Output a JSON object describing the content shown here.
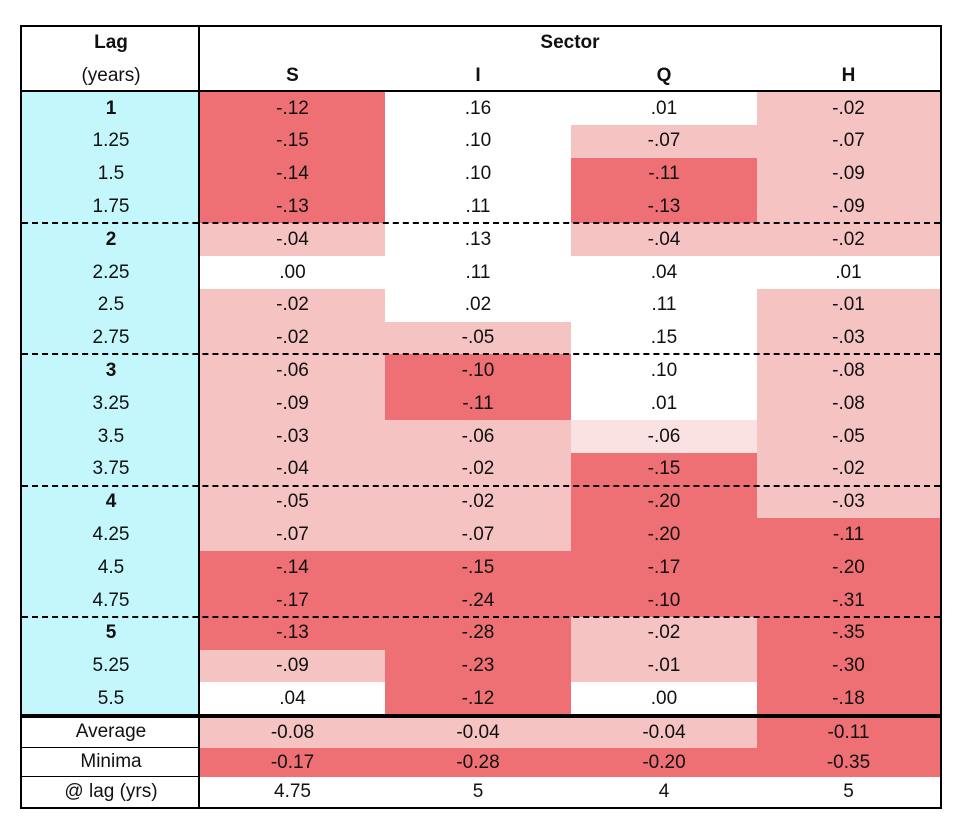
{
  "header": {
    "lag": "Lag",
    "lag_unit": "(years)",
    "sector": "Sector",
    "columns": [
      "S",
      "I",
      "Q",
      "H"
    ]
  },
  "groups": [
    {
      "rows": [
        {
          "lag": "1",
          "cells": [
            "-.12",
            ".16",
            ".01",
            "-.02"
          ],
          "colors": [
            "#ee7074",
            "#ffffff",
            "#ffffff",
            "#f6c3c3"
          ]
        },
        {
          "lag": "1.25",
          "cells": [
            "-.15",
            ".10",
            "-.07",
            "-.07"
          ],
          "colors": [
            "#ee7074",
            "#ffffff",
            "#f6c3c3",
            "#f6c3c3"
          ]
        },
        {
          "lag": "1.5",
          "cells": [
            "-.14",
            ".10",
            "-.11",
            "-.09"
          ],
          "colors": [
            "#ee7074",
            "#ffffff",
            "#ee7074",
            "#f6c3c3"
          ]
        },
        {
          "lag": "1.75",
          "cells": [
            "-.13",
            ".11",
            "-.13",
            "-.09"
          ],
          "colors": [
            "#ee7074",
            "#ffffff",
            "#ee7074",
            "#f6c3c3"
          ]
        }
      ]
    },
    {
      "rows": [
        {
          "lag": "2",
          "cells": [
            "-.04",
            ".13",
            "-.04",
            "-.02"
          ],
          "colors": [
            "#f6c3c3",
            "#ffffff",
            "#f6c3c3",
            "#f6c3c3"
          ]
        },
        {
          "lag": "2.25",
          "cells": [
            ".00",
            ".11",
            ".04",
            ".01"
          ],
          "colors": [
            "#ffffff",
            "#ffffff",
            "#ffffff",
            "#ffffff"
          ]
        },
        {
          "lag": "2.5",
          "cells": [
            "-.02",
            ".02",
            ".11",
            "-.01"
          ],
          "colors": [
            "#f6c3c3",
            "#ffffff",
            "#ffffff",
            "#f6c3c3"
          ]
        },
        {
          "lag": "2.75",
          "cells": [
            "-.02",
            "-.05",
            ".15",
            "-.03"
          ],
          "colors": [
            "#f6c3c3",
            "#f6c3c3",
            "#ffffff",
            "#f6c3c3"
          ]
        }
      ]
    },
    {
      "rows": [
        {
          "lag": "3",
          "cells": [
            "-.06",
            "-.10",
            ".10",
            "-.08"
          ],
          "colors": [
            "#f6c3c3",
            "#ee7074",
            "#ffffff",
            "#f6c3c3"
          ]
        },
        {
          "lag": "3.25",
          "cells": [
            "-.09",
            "-.11",
            ".01",
            "-.08"
          ],
          "colors": [
            "#f6c3c3",
            "#ee7074",
            "#ffffff",
            "#f6c3c3"
          ]
        },
        {
          "lag": "3.5",
          "cells": [
            "-.03",
            "-.06",
            "-.06",
            "-.05"
          ],
          "colors": [
            "#f6c3c3",
            "#f6c3c3",
            "#fae2e2",
            "#f6c3c3"
          ]
        },
        {
          "lag": "3.75",
          "cells": [
            "-.04",
            "-.02",
            "-.15",
            "-.02"
          ],
          "colors": [
            "#f6c3c3",
            "#f6c3c3",
            "#ee7074",
            "#f6c3c3"
          ]
        }
      ]
    },
    {
      "rows": [
        {
          "lag": "4",
          "cells": [
            "-.05",
            "-.02",
            "-.20",
            "-.03"
          ],
          "colors": [
            "#f6c3c3",
            "#f6c3c3",
            "#ee7074",
            "#f6c3c3"
          ]
        },
        {
          "lag": "4.25",
          "cells": [
            "-.07",
            "-.07",
            "-.20",
            "-.11"
          ],
          "colors": [
            "#f6c3c3",
            "#f6c3c3",
            "#ee7074",
            "#ee7074"
          ]
        },
        {
          "lag": "4.5",
          "cells": [
            "-.14",
            "-.15",
            "-.17",
            "-.20"
          ],
          "colors": [
            "#ee7074",
            "#ee7074",
            "#ee7074",
            "#ee7074"
          ]
        },
        {
          "lag": "4.75",
          "cells": [
            "-.17",
            "-.24",
            "-.10",
            "-.31"
          ],
          "colors": [
            "#ee7074",
            "#ee7074",
            "#ee7074",
            "#ee7074"
          ]
        }
      ]
    },
    {
      "rows": [
        {
          "lag": "5",
          "cells": [
            "-.13",
            "-.28",
            "-.02",
            "-.35"
          ],
          "colors": [
            "#ee7074",
            "#ee7074",
            "#f6c3c3",
            "#ee7074"
          ]
        },
        {
          "lag": "5.25",
          "cells": [
            "-.09",
            "-.23",
            "-.01",
            "-.30"
          ],
          "colors": [
            "#f6c3c3",
            "#ee7074",
            "#f6c3c3",
            "#ee7074"
          ]
        },
        {
          "lag": "5.5",
          "cells": [
            ".04",
            "-.12",
            ".00",
            "-.18"
          ],
          "colors": [
            "#ffffff",
            "#ee7074",
            "#ffffff",
            "#ee7074"
          ]
        }
      ]
    }
  ],
  "summary": [
    {
      "label": "Average",
      "cells": [
        "-0.08",
        "-0.04",
        "-0.04",
        "-0.11"
      ],
      "colors": [
        "#f6c3c3",
        "#f6c3c3",
        "#f6c3c3",
        "#ee7074"
      ]
    },
    {
      "label": "Minima",
      "cells": [
        "-0.17",
        "-0.28",
        "-0.20",
        "-0.35"
      ],
      "colors": [
        "#ee7074",
        "#ee7074",
        "#ee7074",
        "#ee7074"
      ]
    },
    {
      "label": "@ lag (yrs)",
      "cells": [
        "4.75",
        "5",
        "4",
        "5"
      ],
      "colors": [
        "#ffffff",
        "#ffffff",
        "#ffffff",
        "#ffffff"
      ]
    }
  ]
}
